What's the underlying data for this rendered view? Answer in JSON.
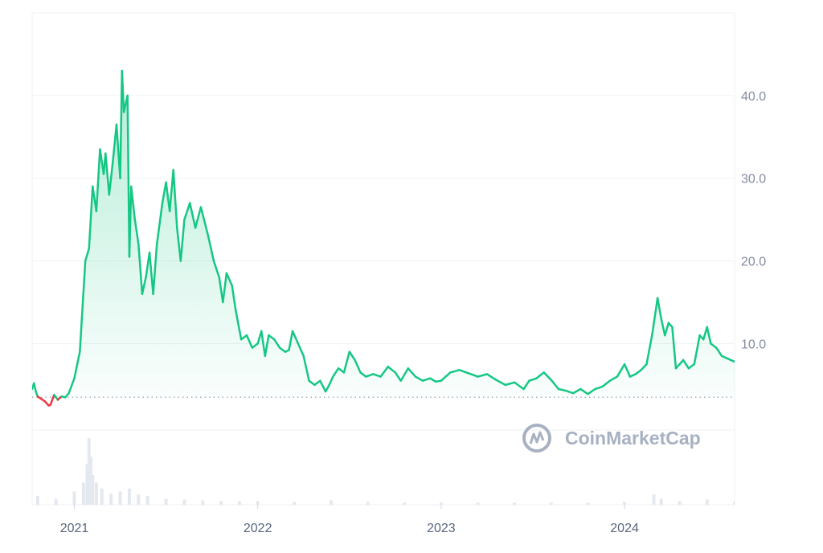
{
  "watermark": {
    "text": "CoinMarketCap",
    "logo_icon": "coinmarketcap-logo-icon"
  },
  "colors": {
    "up_line": "#16c784",
    "down_line": "#ea3943",
    "area_fill_top": "#16c784",
    "grid": "#eff2f5",
    "baseline": "#a6b0c3",
    "volume": "#e4e8ef",
    "watermark": "#a7b1c2"
  },
  "chart_data": {
    "type": "area",
    "title": "",
    "xlabel": "",
    "ylabel": "",
    "ylim": [
      -9.5,
      50
    ],
    "y_ticks": [
      10,
      20,
      30,
      40
    ],
    "y_tick_labels": [
      "10.0",
      "20.0",
      "30.0",
      "40.0"
    ],
    "x_range": [
      2020.77,
      2024.6
    ],
    "x_ticks": [
      2021,
      2022,
      2023,
      2024
    ],
    "x_tick_labels": [
      "2021",
      "2022",
      "2023",
      "2024"
    ],
    "grid": true,
    "y_axis_position": "right",
    "baseline_value": 3.5,
    "series": [
      {
        "values": [
          [
            2020.77,
            4.5
          ],
          [
            2020.78,
            5.2
          ],
          [
            2020.79,
            4.2
          ],
          [
            2020.8,
            3.6
          ],
          [
            2020.82,
            3.3
          ],
          [
            2020.84,
            3.0
          ],
          [
            2020.86,
            2.5
          ],
          [
            2020.87,
            2.6
          ],
          [
            2020.89,
            3.8
          ],
          [
            2020.91,
            3.2
          ],
          [
            2020.93,
            3.6
          ],
          [
            2020.95,
            3.5
          ],
          [
            2020.97,
            4.0
          ],
          [
            2021.0,
            5.8
          ],
          [
            2021.03,
            9.0
          ],
          [
            2021.06,
            20.0
          ],
          [
            2021.08,
            21.5
          ],
          [
            2021.1,
            29.0
          ],
          [
            2021.12,
            26.0
          ],
          [
            2021.14,
            33.5
          ],
          [
            2021.16,
            30.5
          ],
          [
            2021.17,
            33.0
          ],
          [
            2021.19,
            28.0
          ],
          [
            2021.21,
            32.0
          ],
          [
            2021.23,
            36.5
          ],
          [
            2021.25,
            30.0
          ],
          [
            2021.26,
            43.0
          ],
          [
            2021.27,
            38.0
          ],
          [
            2021.29,
            40.0
          ],
          [
            2021.3,
            20.5
          ],
          [
            2021.31,
            29.0
          ],
          [
            2021.33,
            25.0
          ],
          [
            2021.35,
            22.0
          ],
          [
            2021.37,
            16.0
          ],
          [
            2021.39,
            18.0
          ],
          [
            2021.41,
            21.0
          ],
          [
            2021.43,
            16.0
          ],
          [
            2021.45,
            22.0
          ],
          [
            2021.48,
            27.0
          ],
          [
            2021.5,
            29.5
          ],
          [
            2021.52,
            26.0
          ],
          [
            2021.54,
            31.0
          ],
          [
            2021.56,
            24.0
          ],
          [
            2021.58,
            20.0
          ],
          [
            2021.6,
            25.0
          ],
          [
            2021.63,
            27.0
          ],
          [
            2021.66,
            24.0
          ],
          [
            2021.69,
            26.5
          ],
          [
            2021.73,
            23.0
          ],
          [
            2021.76,
            20.0
          ],
          [
            2021.79,
            18.0
          ],
          [
            2021.81,
            15.0
          ],
          [
            2021.83,
            18.5
          ],
          [
            2021.86,
            17.0
          ],
          [
            2021.88,
            14.0
          ],
          [
            2021.91,
            10.5
          ],
          [
            2021.94,
            11.0
          ],
          [
            2021.97,
            9.5
          ],
          [
            2022.0,
            10.0
          ],
          [
            2022.02,
            11.5
          ],
          [
            2022.04,
            8.5
          ],
          [
            2022.06,
            11.0
          ],
          [
            2022.09,
            10.5
          ],
          [
            2022.12,
            9.5
          ],
          [
            2022.15,
            9.0
          ],
          [
            2022.17,
            9.2
          ],
          [
            2022.19,
            11.5
          ],
          [
            2022.22,
            10.0
          ],
          [
            2022.25,
            8.5
          ],
          [
            2022.28,
            5.5
          ],
          [
            2022.31,
            5.0
          ],
          [
            2022.34,
            5.5
          ],
          [
            2022.37,
            4.2
          ],
          [
            2022.39,
            5.0
          ],
          [
            2022.41,
            6.0
          ],
          [
            2022.44,
            7.0
          ],
          [
            2022.47,
            6.5
          ],
          [
            2022.5,
            9.0
          ],
          [
            2022.53,
            8.0
          ],
          [
            2022.56,
            6.5
          ],
          [
            2022.59,
            6.0
          ],
          [
            2022.63,
            6.3
          ],
          [
            2022.67,
            6.0
          ],
          [
            2022.71,
            7.2
          ],
          [
            2022.75,
            6.5
          ],
          [
            2022.78,
            5.5
          ],
          [
            2022.82,
            7.0
          ],
          [
            2022.86,
            6.0
          ],
          [
            2022.9,
            5.5
          ],
          [
            2022.94,
            5.8
          ],
          [
            2022.97,
            5.4
          ],
          [
            2023.0,
            5.5
          ],
          [
            2023.05,
            6.5
          ],
          [
            2023.1,
            6.8
          ],
          [
            2023.15,
            6.4
          ],
          [
            2023.2,
            6.0
          ],
          [
            2023.25,
            6.3
          ],
          [
            2023.3,
            5.6
          ],
          [
            2023.35,
            5.0
          ],
          [
            2023.4,
            5.3
          ],
          [
            2023.45,
            4.5
          ],
          [
            2023.48,
            5.5
          ],
          [
            2023.52,
            5.8
          ],
          [
            2023.56,
            6.5
          ],
          [
            2023.6,
            5.6
          ],
          [
            2023.64,
            4.5
          ],
          [
            2023.68,
            4.3
          ],
          [
            2023.72,
            4.0
          ],
          [
            2023.76,
            4.5
          ],
          [
            2023.8,
            3.9
          ],
          [
            2023.84,
            4.5
          ],
          [
            2023.88,
            4.8
          ],
          [
            2023.92,
            5.5
          ],
          [
            2023.96,
            6.0
          ],
          [
            2024.0,
            7.5
          ],
          [
            2024.03,
            6.0
          ],
          [
            2024.06,
            6.3
          ],
          [
            2024.09,
            6.8
          ],
          [
            2024.12,
            7.5
          ],
          [
            2024.15,
            11.0
          ],
          [
            2024.18,
            15.5
          ],
          [
            2024.2,
            13.0
          ],
          [
            2024.22,
            11.0
          ],
          [
            2024.24,
            12.5
          ],
          [
            2024.26,
            12.0
          ],
          [
            2024.28,
            7.0
          ],
          [
            2024.3,
            7.5
          ],
          [
            2024.32,
            8.0
          ],
          [
            2024.35,
            7.0
          ],
          [
            2024.38,
            7.5
          ],
          [
            2024.41,
            11.0
          ],
          [
            2024.43,
            10.5
          ],
          [
            2024.45,
            12.0
          ],
          [
            2024.47,
            10.0
          ],
          [
            2024.5,
            9.5
          ],
          [
            2024.53,
            8.5
          ],
          [
            2024.56,
            8.2
          ],
          [
            2024.6,
            7.8
          ]
        ]
      }
    ],
    "volume": [
      [
        2020.8,
        0.12
      ],
      [
        2020.9,
        0.08
      ],
      [
        2021.0,
        0.18
      ],
      [
        2021.05,
        0.3
      ],
      [
        2021.07,
        0.55
      ],
      [
        2021.08,
        0.9
      ],
      [
        2021.09,
        0.65
      ],
      [
        2021.1,
        0.4
      ],
      [
        2021.12,
        0.3
      ],
      [
        2021.15,
        0.22
      ],
      [
        2021.2,
        0.15
      ],
      [
        2021.25,
        0.18
      ],
      [
        2021.3,
        0.22
      ],
      [
        2021.35,
        0.14
      ],
      [
        2021.4,
        0.12
      ],
      [
        2021.5,
        0.08
      ],
      [
        2021.6,
        0.07
      ],
      [
        2021.7,
        0.06
      ],
      [
        2021.8,
        0.05
      ],
      [
        2021.9,
        0.05
      ],
      [
        2022.0,
        0.05
      ],
      [
        2022.2,
        0.04
      ],
      [
        2022.4,
        0.06
      ],
      [
        2022.6,
        0.04
      ],
      [
        2022.8,
        0.03
      ],
      [
        2023.0,
        0.03
      ],
      [
        2023.2,
        0.03
      ],
      [
        2023.4,
        0.03
      ],
      [
        2023.6,
        0.03
      ],
      [
        2023.8,
        0.03
      ],
      [
        2024.0,
        0.04
      ],
      [
        2024.16,
        0.14
      ],
      [
        2024.2,
        0.08
      ],
      [
        2024.3,
        0.05
      ],
      [
        2024.45,
        0.07
      ],
      [
        2024.6,
        0.04
      ]
    ]
  }
}
